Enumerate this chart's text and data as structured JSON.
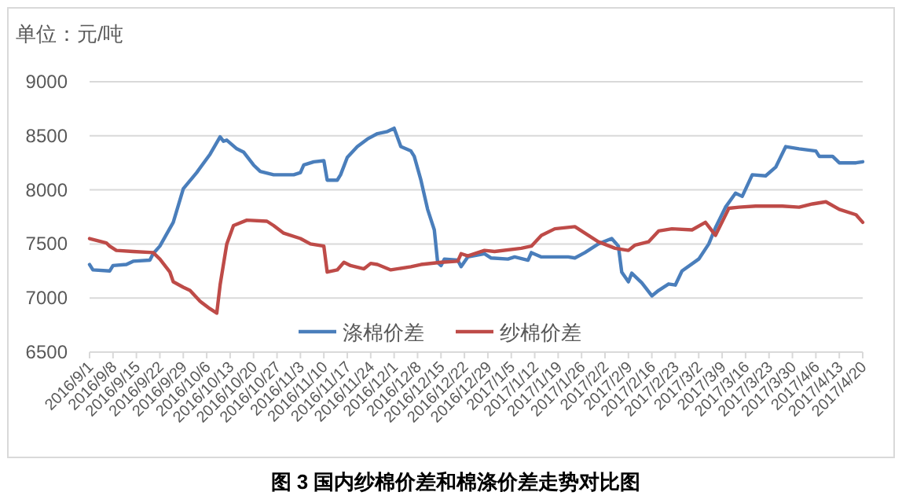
{
  "chart_data": {
    "type": "line",
    "title": "图 3 国内纱棉价差和棉涤价差走势对比图",
    "ylabel": "单位：元/吨",
    "xlim": [
      "2016-09-01",
      "2017-04-20"
    ],
    "ylim": [
      6500,
      9000
    ],
    "yticks": [
      6500,
      7000,
      7500,
      8000,
      8500,
      9000
    ],
    "xticks": [
      {
        "value": "2016-09-01",
        "label": "2016/9/1"
      },
      {
        "value": "2016-09-08",
        "label": "2016/9/8"
      },
      {
        "value": "2016-09-15",
        "label": "2016/9/15"
      },
      {
        "value": "2016-09-22",
        "label": "2016/9/22"
      },
      {
        "value": "2016-09-29",
        "label": "2016/9/29"
      },
      {
        "value": "2016-10-06",
        "label": "2016/10/6"
      },
      {
        "value": "2016-10-13",
        "label": "2016/10/13"
      },
      {
        "value": "2016-10-20",
        "label": "2016/10/20"
      },
      {
        "value": "2016-10-27",
        "label": "2016/10/27"
      },
      {
        "value": "2016-11-03",
        "label": "2016/11/3"
      },
      {
        "value": "2016-11-10",
        "label": "2016/11/10"
      },
      {
        "value": "2016-11-17",
        "label": "2016/11/17"
      },
      {
        "value": "2016-11-24",
        "label": "2016/11/24"
      },
      {
        "value": "2016-12-01",
        "label": "2016/12/1"
      },
      {
        "value": "2016-12-08",
        "label": "2016/12/8"
      },
      {
        "value": "2016-12-15",
        "label": "2016/12/15"
      },
      {
        "value": "2016-12-22",
        "label": "2016/12/22"
      },
      {
        "value": "2016-12-29",
        "label": "2016/12/29"
      },
      {
        "value": "2017-01-05",
        "label": "2017/1/5"
      },
      {
        "value": "2017-01-12",
        "label": "2017/1/12"
      },
      {
        "value": "2017-01-19",
        "label": "2017/1/19"
      },
      {
        "value": "2017-01-26",
        "label": "2017/1/26"
      },
      {
        "value": "2017-02-02",
        "label": "2017/2/2"
      },
      {
        "value": "2017-02-09",
        "label": "2017/2/9"
      },
      {
        "value": "2017-02-16",
        "label": "2017/2/16"
      },
      {
        "value": "2017-02-23",
        "label": "2017/2/23"
      },
      {
        "value": "2017-03-02",
        "label": "2017/3/2"
      },
      {
        "value": "2017-03-09",
        "label": "2017/3/9"
      },
      {
        "value": "2017-03-16",
        "label": "2017/3/16"
      },
      {
        "value": "2017-03-23",
        "label": "2017/3/23"
      },
      {
        "value": "2017-03-30",
        "label": "2017/3/30"
      },
      {
        "value": "2017-04-06",
        "label": "2017/4/6"
      },
      {
        "value": "2017-04-13",
        "label": "2017/4/13"
      },
      {
        "value": "2017-04-20",
        "label": "2017/4/20"
      }
    ],
    "grid": "y",
    "legend": "bottom",
    "series": [
      {
        "name": "涤棉价差",
        "color": "#4a7ebb",
        "x": [
          "2016-09-01",
          "2016-09-02",
          "2016-09-07",
          "2016-09-08",
          "2016-09-12",
          "2016-09-14",
          "2016-09-19",
          "2016-09-20",
          "2016-09-22",
          "2016-09-26",
          "2016-09-29",
          "2016-10-03",
          "2016-10-07",
          "2016-10-10",
          "2016-10-11",
          "2016-10-12",
          "2016-10-15",
          "2016-10-17",
          "2016-10-20",
          "2016-10-22",
          "2016-10-26",
          "2016-11-01",
          "2016-11-03",
          "2016-11-04",
          "2016-11-07",
          "2016-11-10",
          "2016-11-11",
          "2016-11-14",
          "2016-11-15",
          "2016-11-17",
          "2016-11-20",
          "2016-11-23",
          "2016-11-26",
          "2016-11-29",
          "2016-12-01",
          "2016-12-03",
          "2016-12-06",
          "2016-12-07",
          "2016-12-09",
          "2016-12-11",
          "2016-12-13",
          "2016-12-14",
          "2016-12-15",
          "2016-12-16",
          "2016-12-20",
          "2016-12-21",
          "2016-12-23",
          "2016-12-28",
          "2016-12-30",
          "2017-01-04",
          "2017-01-06",
          "2017-01-10",
          "2017-01-11",
          "2017-01-14",
          "2017-01-22",
          "2017-01-24",
          "2017-01-27",
          "2017-01-31",
          "2017-02-04",
          "2017-02-06",
          "2017-02-07",
          "2017-02-09",
          "2017-02-10",
          "2017-02-13",
          "2017-02-16",
          "2017-02-18",
          "2017-02-21",
          "2017-02-23",
          "2017-02-25",
          "2017-03-02",
          "2017-03-05",
          "2017-03-07",
          "2017-03-10",
          "2017-03-13",
          "2017-03-15",
          "2017-03-18",
          "2017-03-22",
          "2017-03-25",
          "2017-03-28",
          "2017-04-01",
          "2017-04-06",
          "2017-04-07",
          "2017-04-11",
          "2017-04-13",
          "2017-04-18",
          "2017-04-20"
        ],
        "values": [
          7310,
          7260,
          7250,
          7300,
          7310,
          7340,
          7350,
          7410,
          7480,
          7700,
          8010,
          8160,
          8330,
          8490,
          8450,
          8460,
          8380,
          8350,
          8230,
          8170,
          8140,
          8140,
          8160,
          8230,
          8260,
          8270,
          8090,
          8090,
          8140,
          8300,
          8400,
          8470,
          8520,
          8540,
          8570,
          8400,
          8360,
          8310,
          8090,
          7820,
          7630,
          7330,
          7300,
          7360,
          7350,
          7290,
          7380,
          7410,
          7370,
          7360,
          7380,
          7350,
          7420,
          7380,
          7380,
          7370,
          7420,
          7500,
          7550,
          7480,
          7240,
          7150,
          7230,
          7140,
          7020,
          7070,
          7130,
          7120,
          7250,
          7360,
          7500,
          7650,
          7840,
          7970,
          7940,
          8140,
          8130,
          8210,
          8400,
          8380,
          8360,
          8310,
          8310,
          8250,
          8250,
          8260
        ]
      },
      {
        "name": "纱棉价差",
        "color": "#be4b48",
        "x": [
          "2016-09-01",
          "2016-09-06",
          "2016-09-07",
          "2016-09-09",
          "2016-09-14",
          "2016-09-20",
          "2016-09-22",
          "2016-09-25",
          "2016-09-26",
          "2016-09-29",
          "2016-10-01",
          "2016-10-04",
          "2016-10-07",
          "2016-10-09",
          "2016-10-10",
          "2016-10-12",
          "2016-10-14",
          "2016-10-18",
          "2016-10-24",
          "2016-10-26",
          "2016-10-29",
          "2016-11-03",
          "2016-11-06",
          "2016-11-10",
          "2016-11-11",
          "2016-11-14",
          "2016-11-16",
          "2016-11-18",
          "2016-11-22",
          "2016-11-24",
          "2016-11-26",
          "2016-11-30",
          "2016-12-06",
          "2016-12-09",
          "2016-12-15",
          "2016-12-20",
          "2016-12-21",
          "2016-12-23",
          "2016-12-28",
          "2016-12-31",
          "2017-01-08",
          "2017-01-11",
          "2017-01-14",
          "2017-01-18",
          "2017-01-24",
          "2017-01-27",
          "2017-01-31",
          "2017-02-05",
          "2017-02-09",
          "2017-02-11",
          "2017-02-15",
          "2017-02-18",
          "2017-02-22",
          "2017-02-28",
          "2017-03-04",
          "2017-03-07",
          "2017-03-11",
          "2017-03-14",
          "2017-03-19",
          "2017-03-27",
          "2017-04-01",
          "2017-04-05",
          "2017-04-09",
          "2017-04-13",
          "2017-04-18",
          "2017-04-20"
        ],
        "values": [
          7550,
          7510,
          7480,
          7440,
          7430,
          7420,
          7360,
          7240,
          7150,
          7100,
          7070,
          6970,
          6900,
          6860,
          7120,
          7500,
          7670,
          7720,
          7710,
          7670,
          7600,
          7550,
          7500,
          7480,
          7240,
          7260,
          7330,
          7300,
          7270,
          7320,
          7310,
          7260,
          7290,
          7310,
          7330,
          7340,
          7410,
          7390,
          7440,
          7430,
          7460,
          7480,
          7580,
          7640,
          7660,
          7600,
          7520,
          7460,
          7440,
          7490,
          7520,
          7620,
          7640,
          7630,
          7700,
          7580,
          7830,
          7840,
          7850,
          7850,
          7840,
          7870,
          7890,
          7820,
          7770,
          7700
        ]
      }
    ]
  }
}
